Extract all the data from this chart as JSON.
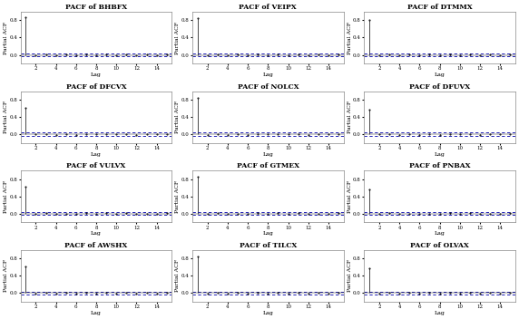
{
  "titles": [
    "PACF of BHBFX",
    "PACF of VEIPX",
    "PACF of DTMMX",
    "PACF of DFCVX",
    "PACF of NOLCX",
    "PACF of DFUVX",
    "PACF of VULVX",
    "PACF of GTMEX",
    "PACF of PNBAX",
    "PACF of AWSHX",
    "PACF of TILCX",
    "PACF of OLVAX"
  ],
  "lag1_values": [
    0.87,
    0.85,
    0.82,
    0.62,
    0.85,
    0.57,
    0.62,
    0.85,
    0.57,
    0.62,
    0.85,
    0.57
  ],
  "other_vals": [
    [
      -0.01,
      0.01,
      -0.015,
      0.005,
      -0.01,
      0.008,
      -0.005,
      0.012,
      -0.008,
      0.003,
      -0.006,
      0.01,
      -0.004,
      0.007
    ],
    [
      -0.005,
      0.012,
      -0.01,
      0.008,
      -0.015,
      0.004,
      -0.008,
      0.009,
      -0.005,
      0.011,
      -0.007,
      0.003,
      -0.009,
      0.006
    ],
    [
      -0.008,
      0.006,
      -0.012,
      0.004,
      -0.009,
      0.007,
      -0.006,
      0.011,
      -0.004,
      0.008,
      -0.01,
      0.005,
      -0.007,
      0.009
    ],
    [
      -0.006,
      0.009,
      -0.011,
      0.005,
      -0.008,
      0.006,
      -0.007,
      0.01,
      -0.005,
      0.007,
      -0.009,
      0.004,
      -0.006,
      0.008
    ],
    [
      -0.009,
      0.007,
      -0.013,
      0.006,
      -0.01,
      0.005,
      -0.007,
      0.012,
      -0.006,
      0.009,
      -0.008,
      0.004,
      -0.005,
      0.007
    ],
    [
      -0.007,
      0.008,
      -0.009,
      0.005,
      -0.011,
      0.006,
      -0.008,
      0.009,
      -0.006,
      0.007,
      -0.01,
      0.004,
      -0.005,
      0.008
    ],
    [
      -0.008,
      0.007,
      -0.01,
      0.006,
      -0.009,
      0.008,
      -0.006,
      0.011,
      -0.007,
      0.009,
      -0.005,
      0.006,
      -0.008,
      0.007
    ],
    [
      -0.006,
      0.009,
      -0.012,
      0.005,
      -0.008,
      0.007,
      -0.009,
      0.01,
      -0.005,
      0.008,
      -0.007,
      0.004,
      -0.006,
      0.009
    ],
    [
      -0.007,
      0.008,
      -0.01,
      0.006,
      -0.009,
      0.005,
      -0.008,
      0.011,
      -0.006,
      0.007,
      -0.009,
      0.004,
      -0.005,
      0.008
    ],
    [
      -0.009,
      0.006,
      -0.011,
      0.005,
      -0.008,
      0.007,
      -0.006,
      0.01,
      -0.007,
      0.008,
      -0.005,
      0.006,
      -0.008,
      0.007
    ],
    [
      -0.006,
      0.009,
      -0.01,
      0.005,
      -0.009,
      0.006,
      -0.007,
      0.011,
      -0.005,
      0.008,
      -0.008,
      0.004,
      -0.006,
      0.009
    ],
    [
      -0.007,
      0.008,
      -0.009,
      0.006,
      -0.011,
      0.005,
      -0.008,
      0.01,
      -0.006,
      0.007,
      -0.009,
      0.004,
      -0.005,
      0.008
    ]
  ],
  "n_lags": 15,
  "conf_level": 0.035,
  "ylim": [
    -0.2,
    1.0
  ],
  "yticks": [
    0.0,
    0.4,
    0.8
  ],
  "ytick_labels": [
    "0.0",
    "0.4",
    "0.8"
  ],
  "xticks": [
    2,
    4,
    6,
    8,
    10,
    12,
    14
  ],
  "ylabel": "Partial ACF",
  "xlabel": "Lag",
  "title_fontsize": 5.5,
  "label_fontsize": 4.5,
  "tick_fontsize": 4.0,
  "bar_color": "#000000",
  "conf_color": "#0000AA",
  "background_color": "#ffffff"
}
